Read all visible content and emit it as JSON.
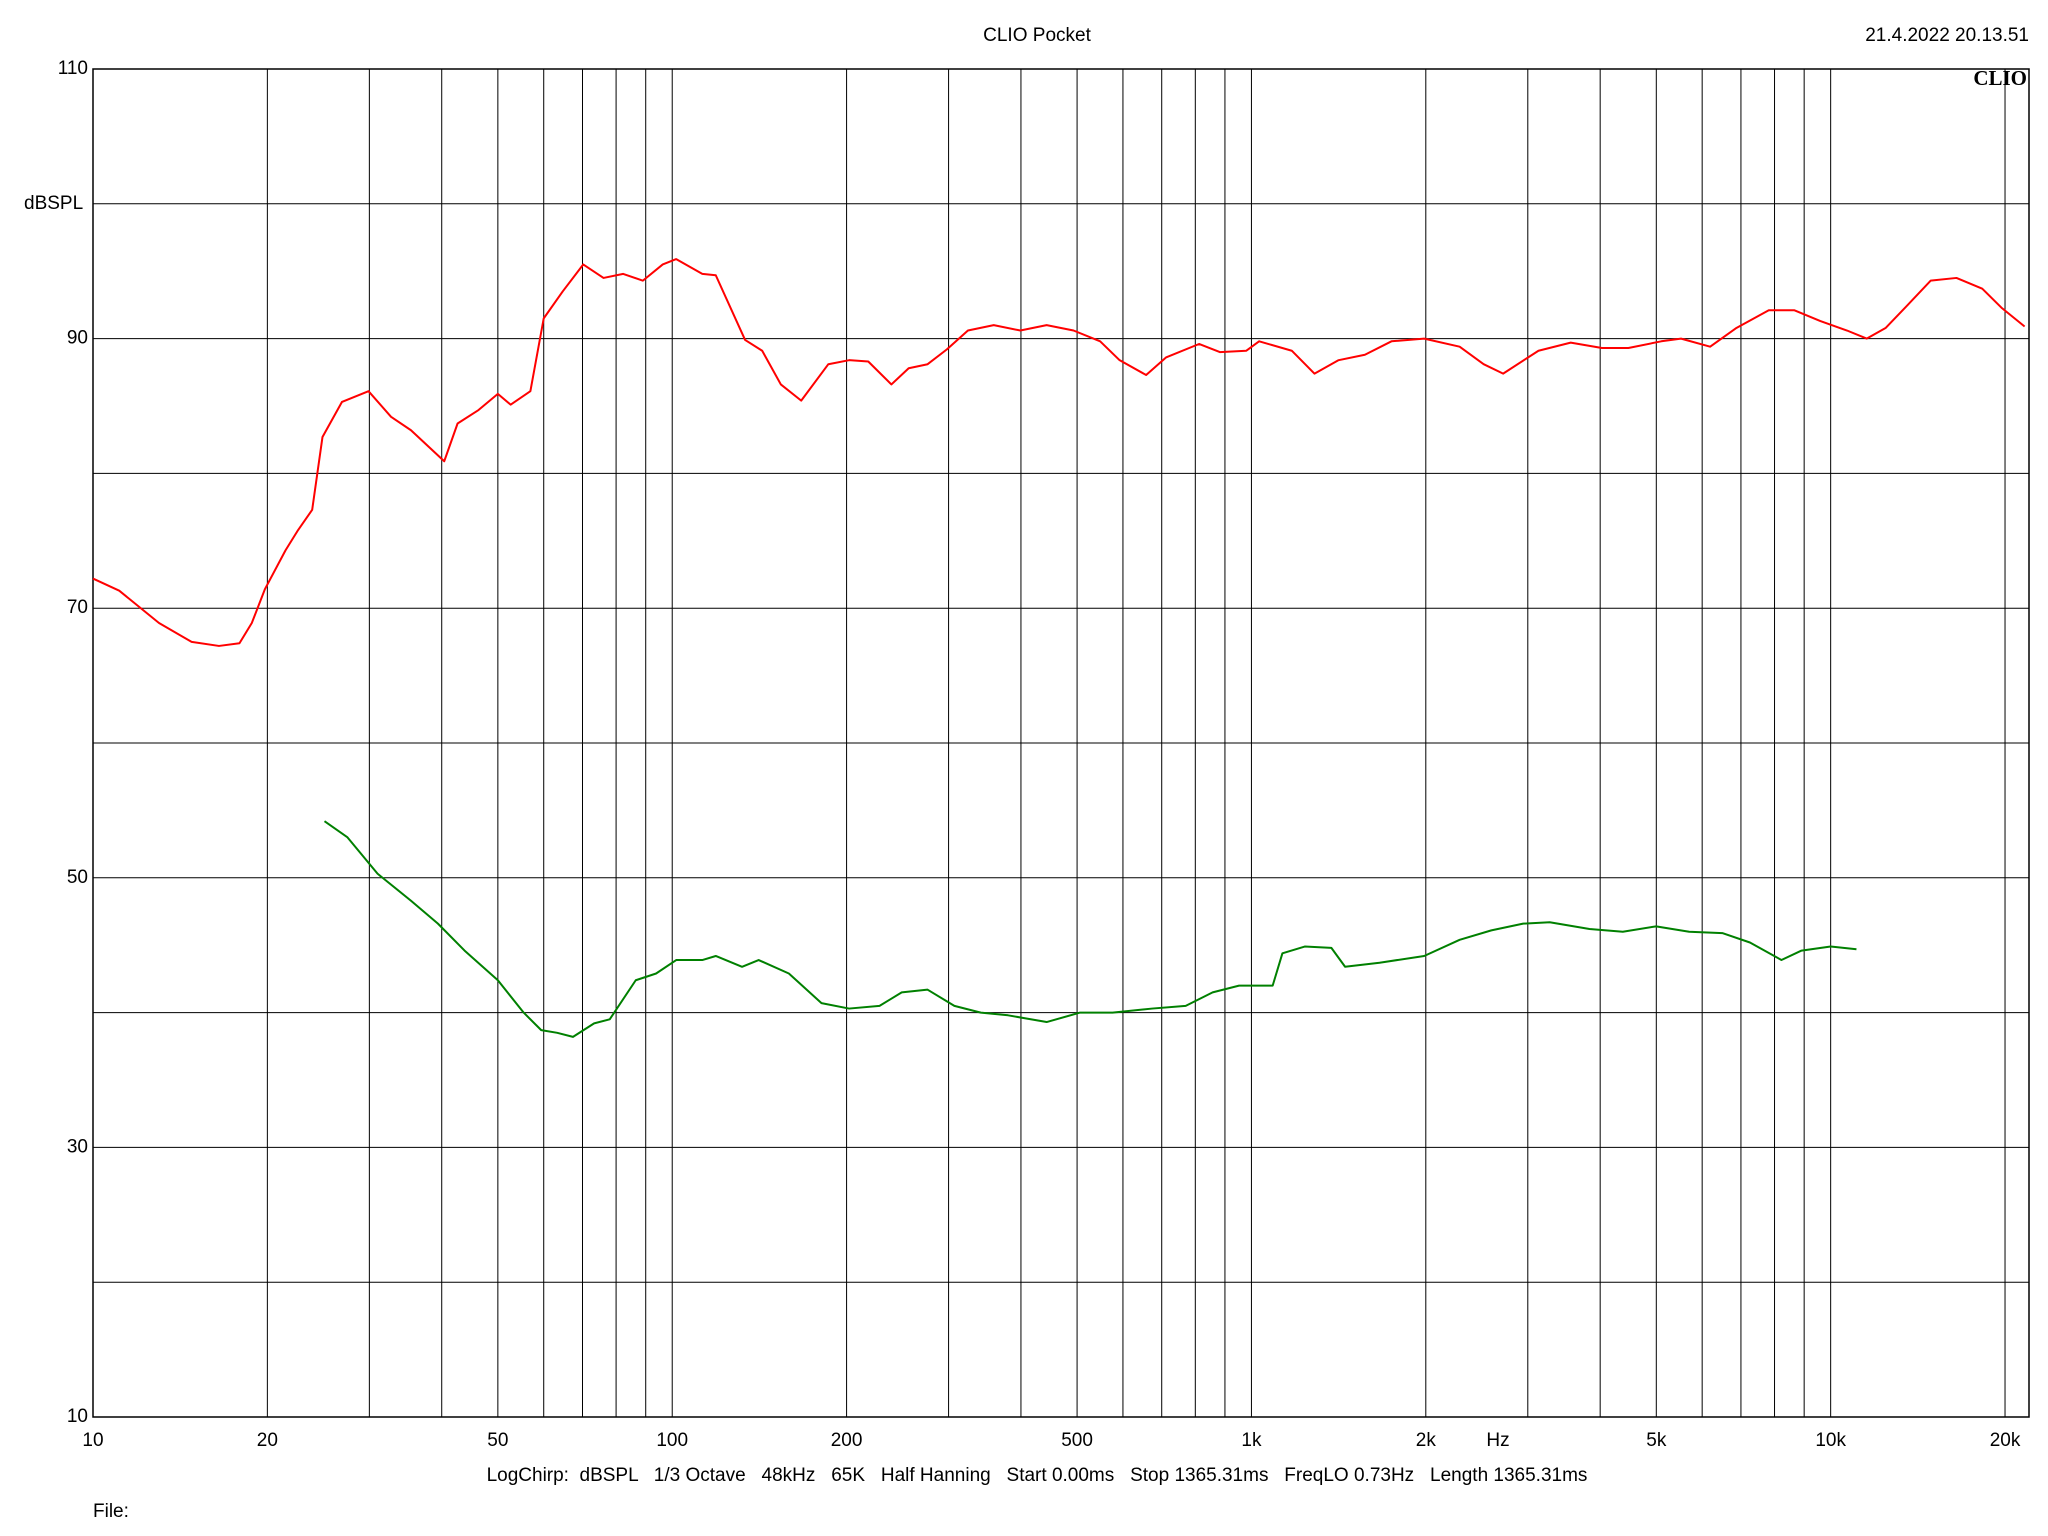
{
  "chart_data": {
    "type": "line",
    "title": "CLIO Pocket",
    "timestamp": "21.4.2022 20.13.51",
    "logo": "CLIO",
    "y_label": "dBSPL",
    "x_unit": "Hz",
    "footer": "LogChirp:  dBSPL   1/3 Octave   48kHz   65K   Half Hanning   Start 0.00ms   Stop 1365.31ms   FreqLO 0.73Hz   Length 1365.31ms",
    "file_label": "File:",
    "x_log": true,
    "grid": true,
    "xlim": [
      10,
      22000
    ],
    "ylim": [
      10,
      110
    ],
    "xticks": [
      10,
      20,
      50,
      100,
      200,
      500,
      {
        "value": 1000,
        "label": "1k"
      },
      {
        "value": 2000,
        "label": "2k"
      },
      {
        "value": 5000,
        "label": "5k"
      },
      {
        "value": 10000,
        "label": "10k"
      },
      {
        "value": 20000,
        "label": "20k"
      }
    ],
    "x_minor_ticks": [
      30,
      40,
      60,
      70,
      80,
      90,
      300,
      400,
      600,
      700,
      800,
      900,
      3000,
      4000,
      6000,
      7000,
      8000,
      9000
    ],
    "yticks": [
      10,
      30,
      50,
      70,
      90,
      110
    ],
    "y_minor_ticks": [
      20,
      40,
      60,
      80,
      100
    ],
    "series": [
      {
        "color": "#ff0000",
        "x": [
          10,
          11.1,
          13.0,
          14.8,
          16.5,
          17.9,
          18.8,
          19.8,
          21.5,
          22.6,
          23.9,
          24.9,
          26.9,
          29.9,
          32.7,
          35.4,
          40.4,
          42.6,
          46.3,
          50.0,
          52.6,
          56.9,
          60.0,
          64.7,
          70.2,
          76.1,
          82.3,
          89.0,
          96.3,
          101.6,
          112.7,
          118.9,
          133.6,
          143,
          154,
          167,
          186,
          202,
          218,
          239,
          256,
          276,
          298,
          324,
          359,
          399,
          443,
          493,
          548,
          592,
          658,
          712,
          812,
          882,
          980,
          1031,
          1174,
          1285,
          1414,
          1570,
          1745,
          1987,
          2288,
          2517,
          2720,
          3130,
          3558,
          4028,
          4475,
          5101,
          5517,
          6193,
          6880,
          7819,
          8660,
          9600,
          10670,
          11540,
          12450,
          13450,
          14880,
          16490,
          18270,
          19710,
          21620
        ],
        "values": [
          72.2,
          71.3,
          68.9,
          67.5,
          67.2,
          67.4,
          68.9,
          71.4,
          74.3,
          75.8,
          77.3,
          82.7,
          85.3,
          86.1,
          84.2,
          83.2,
          80.9,
          83.7,
          84.7,
          85.9,
          85.1,
          86.1,
          91.5,
          93.5,
          95.5,
          94.5,
          94.8,
          94.3,
          95.5,
          95.9,
          94.8,
          94.7,
          89.9,
          89.1,
          86.6,
          85.4,
          88.1,
          88.4,
          88.3,
          86.6,
          87.8,
          88.1,
          89.2,
          90.6,
          91.0,
          90.6,
          91.0,
          90.6,
          89.8,
          88.4,
          87.3,
          88.6,
          89.6,
          89.0,
          89.1,
          89.8,
          89.1,
          87.4,
          88.4,
          88.8,
          89.8,
          90.0,
          89.4,
          88.1,
          87.4,
          89.1,
          89.7,
          89.3,
          89.3,
          89.8,
          90.0,
          89.4,
          90.8,
          92.1,
          92.1,
          91.3,
          90.6,
          90.0,
          90.8,
          92.3,
          94.3,
          94.5,
          93.7,
          92.3,
          90.9
        ]
      },
      {
        "color": "#008000",
        "x": [
          25.1,
          27.5,
          31.0,
          35.4,
          39.4,
          43.8,
          50.0,
          55.4,
          59.4,
          63.3,
          67.4,
          73.3,
          78.0,
          86.5,
          93.8,
          101.6,
          112.7,
          118.9,
          132,
          141,
          159,
          181,
          202,
          228,
          249,
          276,
          307,
          341,
          380,
          443,
          506,
          576,
          674,
          770,
          857,
          952,
          1088,
          1131,
          1236,
          1374,
          1451,
          1664,
          1987,
          2288,
          2595,
          2945,
          3273,
          3834,
          4377,
          4996,
          5698,
          6501,
          7255,
          8223,
          8906,
          10000,
          11080
        ],
        "values": [
          54.2,
          53.0,
          50.3,
          48.3,
          46.6,
          44.6,
          42.4,
          40.0,
          38.7,
          38.5,
          38.2,
          39.2,
          39.5,
          42.4,
          42.9,
          43.9,
          43.9,
          44.2,
          43.4,
          43.9,
          42.9,
          40.7,
          40.3,
          40.5,
          41.5,
          41.7,
          40.5,
          40.0,
          39.8,
          39.3,
          40.0,
          40.0,
          40.3,
          40.5,
          41.5,
          42.0,
          42.0,
          44.4,
          44.9,
          44.8,
          43.4,
          43.7,
          44.2,
          45.4,
          46.1,
          46.6,
          46.7,
          46.2,
          46.0,
          46.4,
          46.0,
          45.9,
          45.2,
          43.9,
          44.6,
          44.9,
          44.7
        ]
      }
    ]
  }
}
